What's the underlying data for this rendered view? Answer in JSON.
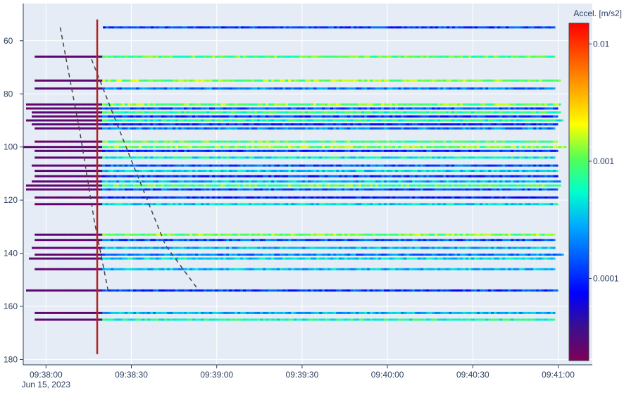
{
  "colors": {
    "plot_bg": "#e5ecf6",
    "grid": "#ffffff",
    "axis_text": "#2a3f5f",
    "event_line": "#b22222",
    "moveout_line": "#444444",
    "colorscale": [
      "#7f0058",
      "#3a0f8f",
      "#0000ff",
      "#0055ff",
      "#00aaff",
      "#00ffcc",
      "#55ff55",
      "#ffff00",
      "#ffaa00",
      "#ff5500",
      "#ff0000"
    ]
  },
  "colorbar": {
    "title": "Accel. [m/s2]",
    "scale": "log",
    "range": [
      2e-05,
      0.015
    ],
    "ticks": [
      {
        "label": "0.01",
        "value": 0.01
      },
      {
        "label": "0.001",
        "value": 0.001
      },
      {
        "label": "0.0001",
        "value": 0.0001
      }
    ]
  },
  "chart_data": {
    "type": "heatmap",
    "title": "",
    "xlabel": "",
    "ylabel": "",
    "x_axis": {
      "type": "date",
      "range": [
        "2023-06-15T09:37:52",
        "2023-06-15T09:41:12"
      ],
      "ticks": [
        {
          "value": "2023-06-15T09:38:00",
          "label": "09:38:00",
          "sublabel": "Jun 15, 2023"
        },
        {
          "value": "2023-06-15T09:38:30",
          "label": "09:38:30",
          "sublabel": ""
        },
        {
          "value": "2023-06-15T09:39:00",
          "label": "09:39:00",
          "sublabel": ""
        },
        {
          "value": "2023-06-15T09:39:30",
          "label": "09:39:30",
          "sublabel": ""
        },
        {
          "value": "2023-06-15T09:40:00",
          "label": "09:40:00",
          "sublabel": ""
        },
        {
          "value": "2023-06-15T09:40:30",
          "label": "09:40:30",
          "sublabel": ""
        },
        {
          "value": "2023-06-15T09:41:00",
          "label": "09:41:00",
          "sublabel": ""
        }
      ]
    },
    "y_axis": {
      "reversed": true,
      "range": [
        46,
        182
      ],
      "ticks": [
        60,
        80,
        100,
        120,
        140,
        160,
        180
      ]
    },
    "grid": true,
    "event_time": "2023-06-15T09:38:18",
    "moveout_lines": [
      {
        "points": [
          [
            "2023-06-15T09:38:05",
            55
          ],
          [
            "2023-06-15T09:38:12",
            95
          ],
          [
            "2023-06-15T09:38:17",
            128
          ],
          [
            "2023-06-15T09:38:22",
            155
          ]
        ]
      },
      {
        "points": [
          [
            "2023-06-15T09:38:16",
            67
          ],
          [
            "2023-06-15T09:38:30",
            105
          ],
          [
            "2023-06-15T09:38:42",
            137
          ],
          [
            "2023-06-15T09:38:53",
            153
          ]
        ]
      }
    ],
    "traces": [
      {
        "y": 55,
        "start": "2023-06-15T09:38:20",
        "end": "2023-06-15T09:40:59",
        "level": 0.00012
      },
      {
        "y": 66,
        "start": "2023-06-15T09:37:56",
        "end": "2023-06-15T09:40:59",
        "level": 0.0009
      },
      {
        "y": 75,
        "start": "2023-06-15T09:37:56",
        "end": "2023-06-15T09:41:01",
        "level": 0.0012
      },
      {
        "y": 78,
        "start": "2023-06-15T09:37:56",
        "end": "2023-06-15T09:40:59",
        "level": 0.0002
      },
      {
        "y": 84,
        "start": "2023-06-15T09:37:53",
        "end": "2023-06-15T09:41:01",
        "level": 0.0011
      },
      {
        "y": 85.5,
        "start": "2023-06-15T09:37:53",
        "end": "2023-06-15T09:41:00",
        "level": 0.00015
      },
      {
        "y": 87,
        "start": "2023-06-15T09:37:55",
        "end": "2023-06-15T09:41:01",
        "level": 0.0007
      },
      {
        "y": 88.5,
        "start": "2023-06-15T09:37:55",
        "end": "2023-06-15T09:41:00",
        "level": 0.00012
      },
      {
        "y": 90,
        "start": "2023-06-15T09:37:53",
        "end": "2023-06-15T09:41:02",
        "level": 0.0006
      },
      {
        "y": 91.5,
        "start": "2023-06-15T09:37:55",
        "end": "2023-06-15T09:41:00",
        "level": 0.0001
      },
      {
        "y": 93,
        "start": "2023-06-15T09:37:56",
        "end": "2023-06-15T09:40:59",
        "level": 0.0002
      },
      {
        "y": 98,
        "start": "2023-06-15T09:37:56",
        "end": "2023-06-15T09:41:00",
        "level": 0.0009
      },
      {
        "y": 100,
        "start": "2023-06-15T09:37:52",
        "end": "2023-06-15T09:41:03",
        "level": 0.0011
      },
      {
        "y": 101.5,
        "start": "2023-06-15T09:37:56",
        "end": "2023-06-15T09:41:00",
        "level": 0.00012
      },
      {
        "y": 104,
        "start": "2023-06-15T09:37:56",
        "end": "2023-06-15T09:40:59",
        "level": 0.0005
      },
      {
        "y": 107,
        "start": "2023-06-15T09:37:55",
        "end": "2023-06-15T09:41:00",
        "level": 0.00015
      },
      {
        "y": 109,
        "start": "2023-06-15T09:37:56",
        "end": "2023-06-15T09:41:00",
        "level": 0.0004
      },
      {
        "y": 111,
        "start": "2023-06-15T09:37:56",
        "end": "2023-06-15T09:41:00",
        "level": 0.00012
      },
      {
        "y": 113,
        "start": "2023-06-15T09:37:55",
        "end": "2023-06-15T09:41:01",
        "level": 0.0003
      },
      {
        "y": 114.5,
        "start": "2023-06-15T09:37:53",
        "end": "2023-06-15T09:41:01",
        "level": 0.0009
      },
      {
        "y": 116,
        "start": "2023-06-15T09:37:53",
        "end": "2023-06-15T09:41:00",
        "level": 0.00015
      },
      {
        "y": 119,
        "start": "2023-06-15T09:37:56",
        "end": "2023-06-15T09:41:00",
        "level": 0.0001
      },
      {
        "y": 121.5,
        "start": "2023-06-15T09:37:56",
        "end": "2023-06-15T09:41:00",
        "level": 0.0004
      },
      {
        "y": 133,
        "start": "2023-06-15T09:37:56",
        "end": "2023-06-15T09:40:59",
        "level": 0.0011
      },
      {
        "y": 135,
        "start": "2023-06-15T09:37:56",
        "end": "2023-06-15T09:40:59",
        "level": 0.00015
      },
      {
        "y": 138,
        "start": "2023-06-15T09:37:55",
        "end": "2023-06-15T09:40:59",
        "level": 0.0003
      },
      {
        "y": 140.5,
        "start": "2023-06-15T09:37:56",
        "end": "2023-06-15T09:41:02",
        "level": 0.0002
      },
      {
        "y": 142,
        "start": "2023-06-15T09:37:54",
        "end": "2023-06-15T09:40:59",
        "level": 0.0004
      },
      {
        "y": 146,
        "start": "2023-06-15T09:37:56",
        "end": "2023-06-15T09:40:59",
        "level": 0.0003
      },
      {
        "y": 154,
        "start": "2023-06-15T09:37:53",
        "end": "2023-06-15T09:41:00",
        "level": 0.00012
      },
      {
        "y": 162.5,
        "start": "2023-06-15T09:37:56",
        "end": "2023-06-15T09:40:59",
        "level": 0.0003
      },
      {
        "y": 165,
        "start": "2023-06-15T09:37:56",
        "end": "2023-06-15T09:40:59",
        "level": 0.0006
      }
    ]
  }
}
